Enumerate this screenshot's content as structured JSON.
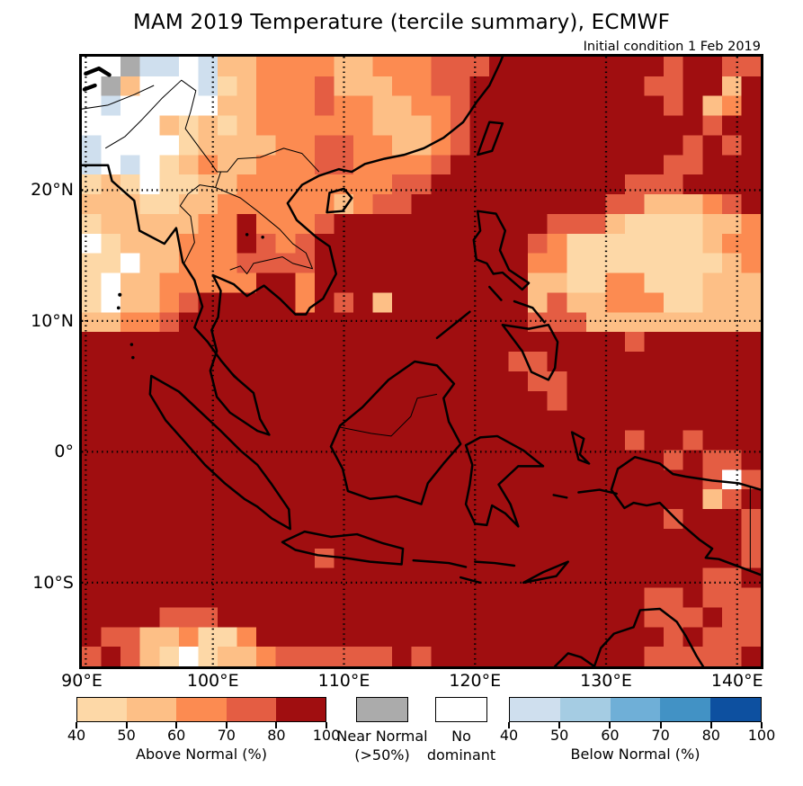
{
  "title": "MAM 2019 Temperature (tercile summary), ECMWF",
  "subtitle": "Initial condition 1 Feb 2019",
  "axes": {
    "x_ticks": [
      {
        "label": "90°E",
        "lon": 90
      },
      {
        "label": "100°E",
        "lon": 100
      },
      {
        "label": "110°E",
        "lon": 110
      },
      {
        "label": "120°E",
        "lon": 120
      },
      {
        "label": "130°E",
        "lon": 130
      },
      {
        "label": "140°E",
        "lon": 140
      }
    ],
    "y_ticks": [
      {
        "label": "20°N",
        "lat": 20
      },
      {
        "label": "10°N",
        "lat": 10
      },
      {
        "label": "0°",
        "lat": 0
      },
      {
        "label": "10°S",
        "lat": -10
      }
    ],
    "lon_gridlines": [
      90.3,
      100,
      110,
      120,
      130,
      140
    ],
    "lat_gridlines": [
      20,
      10,
      0,
      -10
    ]
  },
  "chart_data": {
    "type": "heatmap",
    "title": "MAM 2019 Temperature (tercile summary), ECMWF",
    "subtitle": "Initial condition 1 Feb 2019",
    "lon_range": [
      90,
      141.8
    ],
    "lat_range": [
      -16.4,
      30.2
    ],
    "cols": 35,
    "rows": 31,
    "palette": {
      "R": "#a00e10",
      "r": "#e45d43",
      "o": "#fc8b51",
      "p": "#fdbf86",
      "P": "#fdd8a7",
      "W": "#ffffff",
      "G": "#ababab",
      "b": "#cfdfee",
      "B": "#a5cce3"
    },
    "palette_meaning": {
      "R": "above normal 80-100%",
      "r": "above normal 70-80%",
      "o": "above normal 60-70%",
      "p": "above normal 50-60%",
      "P": "above normal 40-50%",
      "W": "no dominant",
      "G": "near normal >50%",
      "b": "below normal 40-50%",
      "B": "below normal 50-60%"
    },
    "grid_rows": [
      "WWGbbWbppooooppooorrrRRRRRRRRRrRRrr",
      "WGpWWWbPpooorpppoorrRRRRRRRRRrrRRpR",
      "WbWWWWWppooorooppoorRRRRRRRRRRrRpoR",
      "WWWWpPpPpooooooppporRRRRRRRRRRRRrRR",
      "bWWWWPppppoorroopporRRRRRRRRRRRrRrR",
      "bWbWPpoppooorroooorRRRRRRRRRRRrrRRR",
      "PpPWPPppoooooooorrRRRRRRRRRRrrrRRRR",
      "pppPPppooooooporrRRRRRRRRRRrrppporR",
      "PpppppooRooorRRRRRRRRRRRrrrpPPPPppo",
      "WPpppoooRrorRRRRRRRRRRRroPPPPPPPpoo",
      "PPWppooorrrrRRRRRRRRRRRooPPPPPPPPpo",
      "PWppoooooRRoRRRRRRRRRRRppPPooPPPppp",
      "PWpporRRRRRoRrRpRRRRRRRprppoooPPppp",
      "ppoorRRRRRRRRRRRRRRRRRRrrrppppppppp",
      "RRRRRRRRRRRRRRRRRRRRRRRRRRRRrRRRRRR",
      "RRRRRRRRRRRRRRRRRRRRRRrrRRRRRRRRRRR",
      "RRRRRRRRRRRRRRRRRRRRRRRrrRRRRRRRRRR",
      "RRRRRRRRRRRRRRRRRRRRRRRRrRRRRRRRRRR",
      "RRRRRRRRRRRRRRRRRRRRRRRRRRRRRRRRRRR",
      "RRRRRRRRRRRRRRRRRRRRRRRRRRRRrRRrRRR",
      "RRRRRRRRRRRRRRRRRRRRRRRRRRRRRRrRrrR",
      "RRRRRRRRRRRRRRRRRRRRRRRRRRRRRRRRrWr",
      "RRRRRRRRRRRRRRRRRRRRRRRRRRRRRRRRprR",
      "RRRRRRRRRRRRRRRRRRRRRRRRRRRRRRrRRRr",
      "RRRRRRRRRRRRRRRRRRRRRRRRRRRRRRRRRRr",
      "RRRRRRRRRRRRrRRRRRRRRRRRRRRRRRRRRRr",
      "RRRRRRRRRRRRRRRRRRRRRRRRRRRRRRRRrrR",
      "RRRRRRRRRRRRRRRRRRRRRRRRRRRRRrrRrrr",
      "RRRRrrrRRRRRRRRRRRRRRRRRRRRRRrrrRrr",
      "RrrppoPPoRRRRRRRRRRRRRRRRRRRRRrRrrr",
      "rRrpPWPpporrrrrrRrRRRRRRRRRRRrrrrrR"
    ]
  },
  "legend": {
    "above": {
      "caption": "Above Normal (%)",
      "ticks": [
        "40",
        "50",
        "60",
        "70",
        "80",
        "100"
      ],
      "colors": [
        "#fdd8a7",
        "#fdbf86",
        "#fc8b51",
        "#e45d43",
        "#a00e10"
      ]
    },
    "near_normal": {
      "line1": "Near Normal",
      "line2": "(>50%)",
      "color": "#ababab"
    },
    "no_dominant": {
      "line1": "No",
      "line2": "dominant",
      "color": "#ffffff"
    },
    "below": {
      "caption": "Below Normal (%)",
      "ticks": [
        "40",
        "50",
        "60",
        "70",
        "80",
        "100"
      ],
      "colors": [
        "#cfdfee",
        "#a5cce3",
        "#6fafd7",
        "#4292c5",
        "#0d50a0"
      ]
    }
  }
}
